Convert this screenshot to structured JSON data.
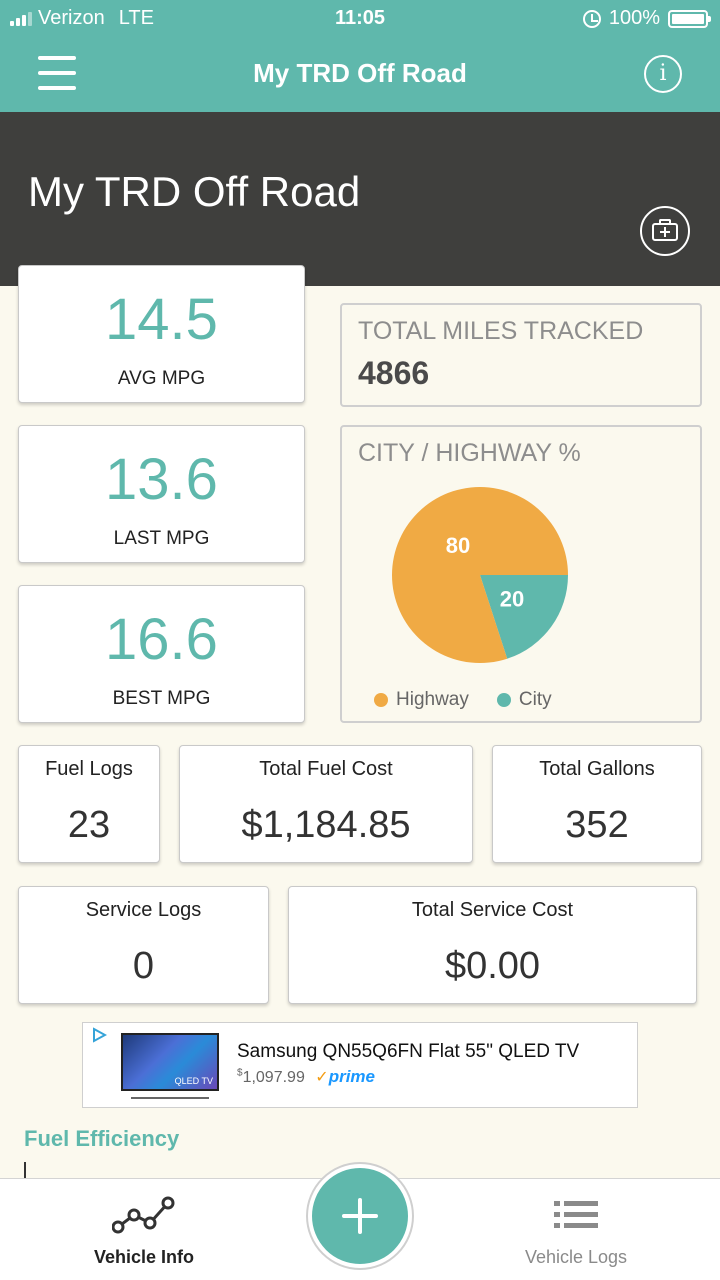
{
  "status_bar": {
    "carrier": "Verizon",
    "network": "LTE",
    "time": "11:05",
    "battery": "100%"
  },
  "nav": {
    "title": "My TRD Off Road",
    "menu_icon": "hamburger-icon",
    "info_icon": "info-icon"
  },
  "vehicle": {
    "name": "My TRD Off Road",
    "camera_icon": "add-photo-icon"
  },
  "mpg": {
    "avg": {
      "value": "14.5",
      "label": "AVG MPG"
    },
    "last": {
      "value": "13.6",
      "label": "LAST MPG"
    },
    "best": {
      "value": "16.6",
      "label": "BEST MPG"
    }
  },
  "miles": {
    "label": "TOTAL MILES TRACKED",
    "value": "4866"
  },
  "chart_data": {
    "type": "pie",
    "title": "CITY / HIGHWAY %",
    "slices": [
      {
        "label": "Highway",
        "value": 80,
        "color": "#f0aa44"
      },
      {
        "label": "City",
        "value": 20,
        "color": "#5fb8ac"
      }
    ],
    "legend": "bottom"
  },
  "fuel": {
    "logs": {
      "label": "Fuel Logs",
      "value": "23"
    },
    "cost": {
      "label": "Total Fuel Cost",
      "value": "$1,184.85"
    },
    "gallons": {
      "label": "Total Gallons",
      "value": "352"
    }
  },
  "service": {
    "logs": {
      "label": "Service Logs",
      "value": "0"
    },
    "cost": {
      "label": "Total Service Cost",
      "value": "$0.00"
    }
  },
  "ad": {
    "title": "Samsung QN55Q6FN Flat 55\" QLED TV",
    "price_symbol": "$",
    "price": "1,097.99",
    "prime": "prime",
    "tv_label": "QLED TV"
  },
  "section": {
    "fuel_efficiency": "Fuel Efficiency"
  },
  "tabs": {
    "vehicle_info": "Vehicle Info",
    "vehicle_logs": "Vehicle Logs"
  },
  "colors": {
    "primary": "#5fb8ac",
    "highway": "#f0aa44",
    "header_dark": "#3f3f3d"
  }
}
